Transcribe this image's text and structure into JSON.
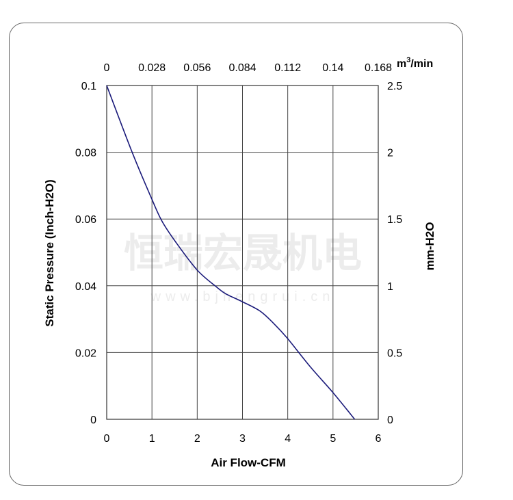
{
  "chart_data": {
    "type": "line",
    "xlabel": "Air Flow-CFM",
    "ylabel": "Static Pressure (Inch-H2O)",
    "ylabel_right": "mm-H2O",
    "xlabel_top_unit": "m³/min",
    "xlim": [
      0,
      6
    ],
    "ylim": [
      0,
      0.1
    ],
    "ylim_right": [
      0,
      2.5
    ],
    "x_ticks": [
      "0",
      "1",
      "2",
      "3",
      "4",
      "5",
      "6"
    ],
    "x_ticks_top": [
      "0",
      "0.028",
      "0.056",
      "0.084",
      "0.112",
      "0.14",
      "0.168"
    ],
    "y_ticks": [
      "0",
      "0.02",
      "0.04",
      "0.06",
      "0.08",
      "0.1"
    ],
    "y_ticks_right": [
      "0",
      "0.5",
      "1",
      "1.5",
      "2",
      "2.5"
    ],
    "grid": true,
    "series": [
      {
        "color": "#1a1a7a",
        "x": [
          0,
          0.565,
          0.99,
          1.22,
          1.52,
          2.0,
          2.43,
          2.63,
          3.0,
          3.39,
          3.69,
          3.99,
          4.5,
          5.0,
          5.48
        ],
        "y": [
          0.1,
          0.0799,
          0.0662,
          0.0594,
          0.0532,
          0.0447,
          0.0396,
          0.0376,
          0.0352,
          0.0324,
          0.0287,
          0.0243,
          0.0157,
          0.008,
          0.0
        ]
      }
    ]
  },
  "watermark": {
    "text": "恒瑞宏晟机电",
    "url": "www.bjhengrui.cn"
  }
}
